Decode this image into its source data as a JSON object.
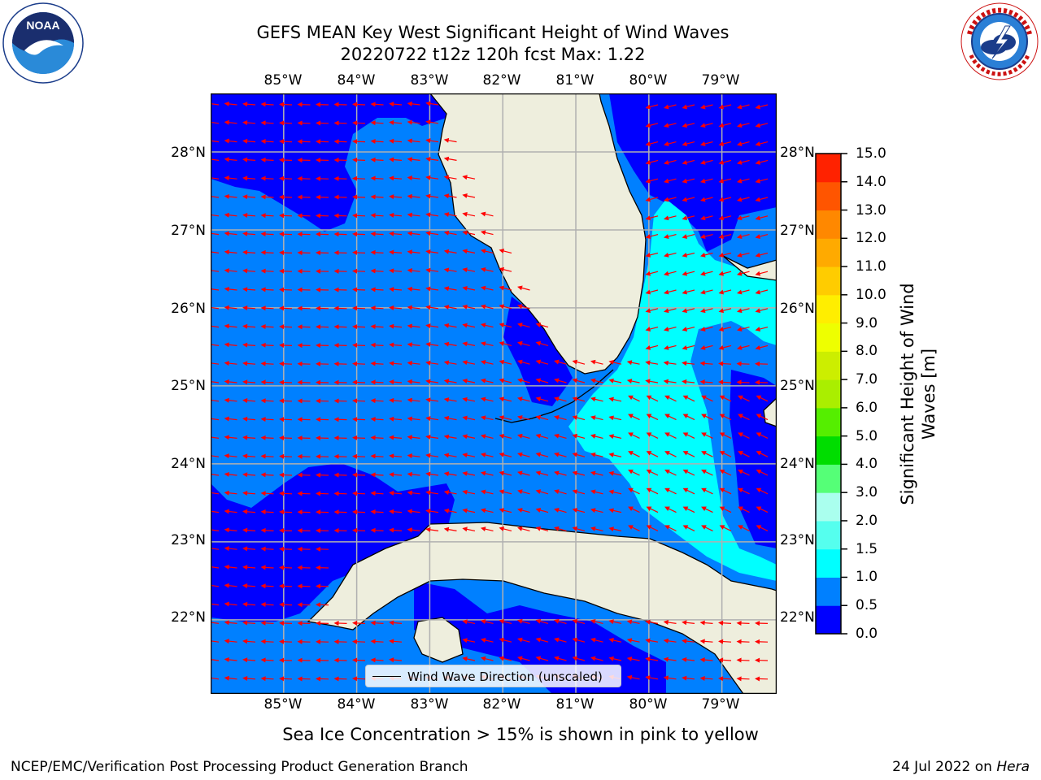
{
  "title": {
    "line1": "GEFS MEAN Key West Significant Height of Wind Waves",
    "line2": "20220722 t12z 120h fcst   Max: 1.22"
  },
  "logos": {
    "left": {
      "icon": "noaa-logo",
      "text": "NOAA",
      "ring_text": "NATIONAL OCEANIC AND ATMOSPHERIC ADMINISTRATION · U.S. DEPARTMENT OF COMMERCE"
    },
    "right": {
      "icon": "nws-logo",
      "ring_text": "NATIONAL WEATHER SERVICE"
    }
  },
  "map": {
    "lon_labels": [
      "85°W",
      "84°W",
      "83°W",
      "82°W",
      "81°W",
      "80°W",
      "79°W"
    ],
    "lat_labels": [
      "28°N",
      "27°N",
      "26°N",
      "25°N",
      "24°N",
      "23°N",
      "22°N"
    ],
    "extent": {
      "lon": [
        -86.0,
        -78.25
      ],
      "lat": [
        21.05,
        28.75
      ]
    },
    "grid": true,
    "colors": {
      "land": "#eeeedd",
      "coast": "#000000",
      "vector": "#ff0000",
      "gridline": "#b0b0b0"
    },
    "legend": {
      "label": "Wind Wave Direction (unscaled)",
      "placement": "bottom-center"
    }
  },
  "colorbar": {
    "label": "Significant Height of Wind Waves [m]",
    "ticks": [
      "0.0",
      "0.5",
      "1.0",
      "1.5",
      "2.0",
      "3.0",
      "4.0",
      "5.0",
      "6.0",
      "7.0",
      "8.0",
      "9.0",
      "10.0",
      "11.0",
      "12.0",
      "13.0",
      "14.0",
      "15.0"
    ],
    "colors": [
      "#0000ff",
      "#0080ff",
      "#00ffff",
      "#55ffee",
      "#aaffee",
      "#55ff77",
      "#00dd00",
      "#55ee00",
      "#aaee00",
      "#ccee00",
      "#eeff00",
      "#ffee00",
      "#ffcc00",
      "#ffaa00",
      "#ff8800",
      "#ff5500",
      "#ff2200"
    ]
  },
  "chart_data": {
    "type": "heatmap",
    "title": "GEFS MEAN Key West Significant Height of Wind Waves",
    "subtitle": "20220722 t12z 120h fcst   Max: 1.22",
    "max": 1.22,
    "units": "m",
    "regions": [
      {
        "range": [
          0.0,
          0.5
        ],
        "areas": [
          "Gulf of Mexico NW corner",
          "west of 84°W south of 24°N",
          "northern Atlantic coast",
          "east of Cuba coast"
        ]
      },
      {
        "range": [
          0.5,
          1.0
        ],
        "areas": [
          "central Gulf of Mexico",
          "Atlantic off Florida",
          "south of Cuba"
        ]
      },
      {
        "range": [
          1.0,
          1.5
        ],
        "areas": [
          "Florida Straits east of Keys",
          "Straits of Florida near 80°W",
          "near 79°W 26°N"
        ]
      }
    ],
    "vector_field": {
      "name": "Wind Wave Direction (unscaled)",
      "prevailing": "from east-southeast toward west"
    }
  },
  "notes": {
    "ice": "Sea Ice Concentration > 15% is shown in pink to yellow",
    "credit": "NCEP/EMC/Verification Post Processing Product Generation Branch",
    "date": "24 Jul 2022 on",
    "host": "Hera"
  }
}
